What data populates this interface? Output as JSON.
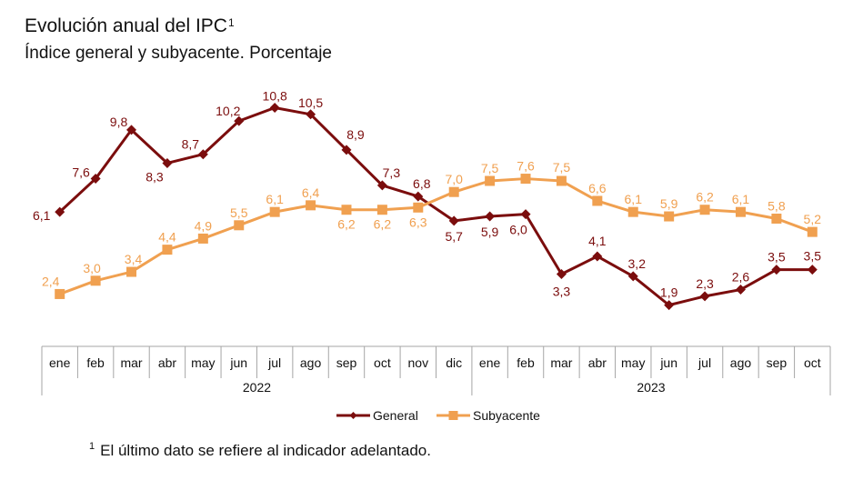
{
  "header": {
    "title": "Evolución anual del IPC",
    "title_superscript": "1",
    "subtitle": "Índice general y subyacente. Porcentaje"
  },
  "footnote": {
    "marker": "1",
    "text": "El último dato se refiere al indicador adelantado."
  },
  "colors": {
    "general": "#7b0d0d",
    "subyacente": "#f0a050",
    "axis": "#a6a6a6",
    "text": "#111111"
  },
  "chart_data": {
    "type": "line",
    "title": "Evolución anual del IPC",
    "subtitle": "Índice general y subyacente. Porcentaje",
    "xlabel": "",
    "ylabel": "",
    "categories": [
      "ene",
      "feb",
      "mar",
      "abr",
      "may",
      "jun",
      "jul",
      "ago",
      "sep",
      "oct",
      "nov",
      "dic",
      "ene",
      "feb",
      "mar",
      "abr",
      "may",
      "jun",
      "jul",
      "ago",
      "sep",
      "oct"
    ],
    "groups": [
      {
        "label": "2022",
        "count": 12
      },
      {
        "label": "2023",
        "count": 10
      }
    ],
    "series": [
      {
        "name": "General",
        "color": "#7b0d0d",
        "marker": "diamond",
        "values": [
          6.1,
          7.6,
          9.8,
          8.3,
          8.7,
          10.2,
          10.8,
          10.5,
          8.9,
          7.3,
          6.8,
          5.7,
          5.9,
          6.0,
          3.3,
          4.1,
          3.2,
          1.9,
          2.3,
          2.6,
          3.5,
          3.5
        ],
        "labels": [
          "6,1",
          "7,6",
          "9,8",
          "8,3",
          "8,7",
          "10,2",
          "10,8",
          "10,5",
          "8,9",
          "7,3",
          "6,8",
          "5,7",
          "5,9",
          "6,0",
          "3,3",
          "4,1",
          "3,2",
          "1,9",
          "2,3",
          "2,6",
          "3,5",
          "3,5"
        ]
      },
      {
        "name": "Subyacente",
        "color": "#f0a050",
        "marker": "square",
        "values": [
          2.4,
          3.0,
          3.4,
          4.4,
          4.9,
          5.5,
          6.1,
          6.4,
          6.2,
          6.2,
          6.3,
          7.0,
          7.5,
          7.6,
          7.5,
          6.6,
          6.1,
          5.9,
          6.2,
          6.1,
          5.8,
          5.2
        ],
        "labels": [
          "2,4",
          "3,0",
          "3,4",
          "4,4",
          "4,9",
          "5,5",
          "6,1",
          "6,4",
          "6,2",
          "6,2",
          "6,3",
          "7,0",
          "7,5",
          "7,6",
          "7,5",
          "6,6",
          "6,1",
          "5,9",
          "6,2",
          "6,1",
          "5,8",
          "5,2"
        ]
      }
    ],
    "ylim": [
      1.0,
      11.5
    ],
    "grid": false,
    "y_axis_visible": false,
    "legend": {
      "position": "bottom-center",
      "entries": [
        "General",
        "Subyacente"
      ]
    }
  }
}
